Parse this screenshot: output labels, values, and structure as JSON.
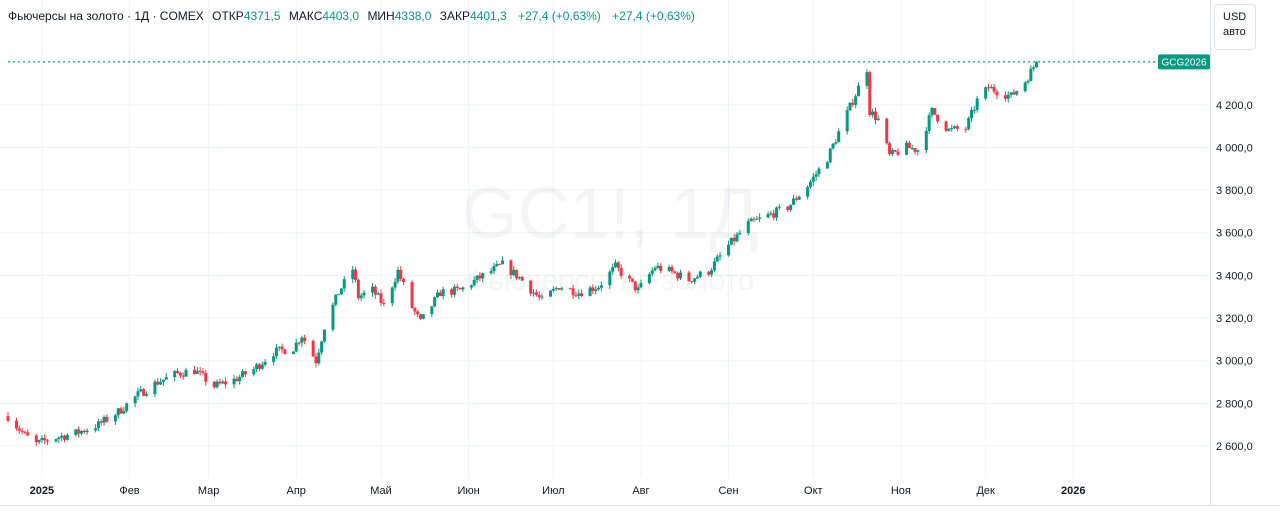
{
  "legend": {
    "name": "Фьючерсы на золото · 1Д · COMEX",
    "open_label": "ОТКР",
    "open_value": "4371,5",
    "high_label": "МАКС",
    "high_value": "4403,0",
    "low_label": "МИН",
    "low_value": "4338,0",
    "close_label": "ЗАКР",
    "close_value": "4401,3",
    "change_1": "+27,4 (+0,63%)",
    "change_2": "+27,4 (+0,63%)"
  },
  "scale": {
    "currency": "USD",
    "mode": "авто"
  },
  "price_tag": {
    "symbol": "GCG2026",
    "value": 4401.3
  },
  "watermark": {
    "symbol": "GC1!, 1Д",
    "name": "Фьючерсы на золото"
  },
  "colors": {
    "up": "#089981",
    "down": "#f23645",
    "grid": "#f0f3fa",
    "text": "#131722"
  },
  "chart_data": {
    "type": "candlestick",
    "y_ticks": [
      "2 600,0",
      "2 800,0",
      "3 000,0",
      "3 200,0",
      "3 400,0",
      "3 600,0",
      "3 800,0",
      "4 000,0",
      "4 200,0"
    ],
    "y_tick_values": [
      2600,
      2800,
      3000,
      3200,
      3400,
      3600,
      3800,
      4000,
      4200
    ],
    "ylim": [
      2450,
      4560
    ],
    "x_ticks": [
      "2025",
      "Фев",
      "Мар",
      "Апр",
      "Май",
      "Июн",
      "Июл",
      "Авг",
      "Сен",
      "Окт",
      "Ноя",
      "Дек",
      "2026"
    ],
    "x_tick_dates": [
      "2025-01-01",
      "2025-02-01",
      "2025-03-01",
      "2025-04-01",
      "2025-05-01",
      "2025-06-01",
      "2025-07-01",
      "2025-08-01",
      "2025-09-01",
      "2025-10-01",
      "2025-11-01",
      "2025-12-01",
      "2026-01-01"
    ],
    "x_start": "2024-12-20",
    "x_end": "2026-01-31",
    "anchors": [
      [
        "2024-12-20",
        2740
      ],
      [
        "2024-12-26",
        2650
      ],
      [
        "2024-12-30",
        2610
      ],
      [
        "2025-01-06",
        2640
      ],
      [
        "2025-01-13",
        2660
      ],
      [
        "2025-01-21",
        2700
      ],
      [
        "2025-01-28",
        2760
      ],
      [
        "2025-02-04",
        2840
      ],
      [
        "2025-02-11",
        2900
      ],
      [
        "2025-02-18",
        2940
      ],
      [
        "2025-02-24",
        2955
      ],
      [
        "2025-03-03",
        2880
      ],
      [
        "2025-03-10",
        2910
      ],
      [
        "2025-03-17",
        2960
      ],
      [
        "2025-03-24",
        3040
      ],
      [
        "2025-03-31",
        3060
      ],
      [
        "2025-04-03",
        3120
      ],
      [
        "2025-04-08",
        3000
      ],
      [
        "2025-04-11",
        3160
      ],
      [
        "2025-04-16",
        3320
      ],
      [
        "2025-04-21",
        3430
      ],
      [
        "2025-04-23",
        3300
      ],
      [
        "2025-04-28",
        3330
      ],
      [
        "2025-05-02",
        3260
      ],
      [
        "2025-05-07",
        3420
      ],
      [
        "2025-05-12",
        3250
      ],
      [
        "2025-05-15",
        3180
      ],
      [
        "2025-05-22",
        3320
      ],
      [
        "2025-05-29",
        3330
      ],
      [
        "2025-06-05",
        3390
      ],
      [
        "2025-06-13",
        3450
      ],
      [
        "2025-06-19",
        3390
      ],
      [
        "2025-06-27",
        3280
      ],
      [
        "2025-07-03",
        3350
      ],
      [
        "2025-07-10",
        3320
      ],
      [
        "2025-07-17",
        3350
      ],
      [
        "2025-07-23",
        3440
      ],
      [
        "2025-07-31",
        3330
      ],
      [
        "2025-08-06",
        3440
      ],
      [
        "2025-08-11",
        3420
      ],
      [
        "2025-08-18",
        3380
      ],
      [
        "2025-08-25",
        3420
      ],
      [
        "2025-09-01",
        3540
      ],
      [
        "2025-09-08",
        3640
      ],
      [
        "2025-09-15",
        3680
      ],
      [
        "2025-09-22",
        3720
      ],
      [
        "2025-09-29",
        3820
      ],
      [
        "2025-10-06",
        3950
      ],
      [
        "2025-10-09",
        4040
      ],
      [
        "2025-10-14",
        4190
      ],
      [
        "2025-10-20",
        4370
      ],
      [
        "2025-10-21",
        4170
      ],
      [
        "2025-10-24",
        4130
      ],
      [
        "2025-10-28",
        3960
      ],
      [
        "2025-11-03",
        4000
      ],
      [
        "2025-11-07",
        3990
      ],
      [
        "2025-11-12",
        4170
      ],
      [
        "2025-11-18",
        4080
      ],
      [
        "2025-11-24",
        4090
      ],
      [
        "2025-11-28",
        4220
      ],
      [
        "2025-12-02",
        4280
      ],
      [
        "2025-12-10",
        4240
      ],
      [
        "2025-12-15",
        4310
      ],
      [
        "2025-12-19",
        4401
      ]
    ]
  }
}
